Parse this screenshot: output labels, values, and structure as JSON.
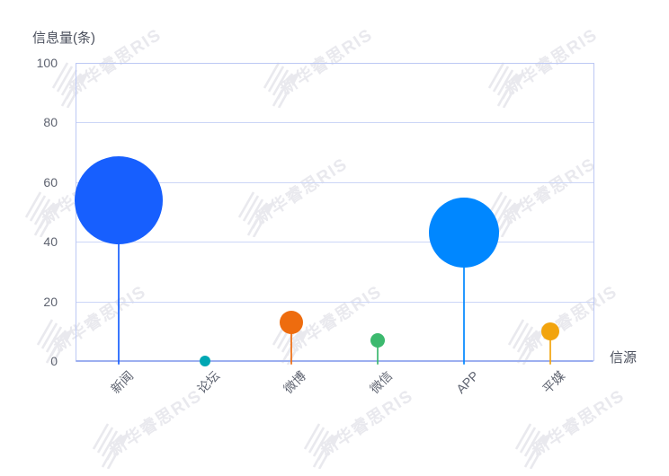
{
  "chart": {
    "y_axis_title": "信息量(条)",
    "x_axis_title": "信源",
    "watermark_text": "新华睿思RIS"
  },
  "chart_data": {
    "type": "scatter",
    "variant": "lollipop-bubble",
    "title": "",
    "xlabel": "信源",
    "ylabel": "信息量(条)",
    "categories": [
      "新闻",
      "论坛",
      "微博",
      "微信",
      "APP",
      "平媒"
    ],
    "values": [
      54,
      0,
      13,
      7,
      43,
      10
    ],
    "bubble_radius_px": [
      49,
      6,
      13,
      8,
      39,
      10
    ],
    "colors": [
      "#175ffe",
      "#00a7b3",
      "#ee6c0e",
      "#3cb96e",
      "#0087ff",
      "#f2a40e"
    ],
    "ylim": [
      0,
      100
    ],
    "yticks": [
      0,
      20,
      40,
      60,
      80,
      100
    ],
    "grid": true,
    "legend": "none",
    "watermark": "新华睿思RIS"
  },
  "style_colors": {
    "background": "#ffffff",
    "grid_line": "#ccd6f7",
    "plot_border": "#bcc8f4",
    "x_axis_line": "#9db0f0",
    "tick_label": "#5e6370",
    "axis_title": "#4a4f5c",
    "watermark": "#e9e9ee"
  }
}
